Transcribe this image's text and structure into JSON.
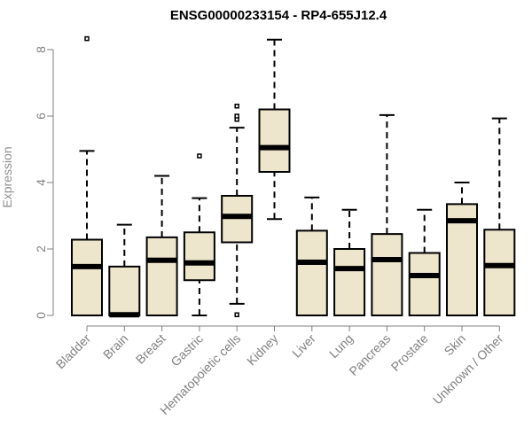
{
  "chart_data": {
    "type": "boxplot",
    "title": "ENSG00000233154 - RP4-655J12.4",
    "ylabel": "Expression",
    "xlabel": "",
    "ylim": [
      0,
      8.4
    ],
    "yticks": [
      0,
      2,
      4,
      6,
      8
    ],
    "colors": {
      "box_fill": "#ede5cc",
      "box_stroke": "#000000",
      "axis": "#808080"
    },
    "categories": [
      "Bladder",
      "Brain",
      "Breast",
      "Gastric",
      "Hematopoietic cells",
      "Kidney",
      "Liver",
      "Lung",
      "Pancreas",
      "Prostate",
      "Skin",
      "Unknown / Other"
    ],
    "boxes": [
      {
        "category": "Bladder",
        "min": 0,
        "q1": 0,
        "median": 1.47,
        "q3": 2.28,
        "max": 4.95,
        "outliers": [
          8.33
        ]
      },
      {
        "category": "Brain",
        "min": 0,
        "q1": 0,
        "median": 0.02,
        "q3": 1.47,
        "max": 2.73,
        "outliers": []
      },
      {
        "category": "Breast",
        "min": 0,
        "q1": 0,
        "median": 1.66,
        "q3": 2.35,
        "max": 4.2,
        "outliers": []
      },
      {
        "category": "Gastric",
        "min": 0,
        "q1": 1.06,
        "median": 1.58,
        "q3": 2.5,
        "max": 3.53,
        "outliers": [
          4.8
        ]
      },
      {
        "category": "Hematopoietic cells",
        "min": 0.35,
        "q1": 2.2,
        "median": 2.98,
        "q3": 3.6,
        "max": 5.65,
        "outliers": [
          0.02,
          5.9,
          6.0,
          6.3
        ]
      },
      {
        "category": "Kidney",
        "min": 2.9,
        "q1": 4.32,
        "median": 5.05,
        "q3": 6.2,
        "max": 8.3,
        "outliers": []
      },
      {
        "category": "Liver",
        "min": 0,
        "q1": 0,
        "median": 1.6,
        "q3": 2.55,
        "max": 3.55,
        "outliers": []
      },
      {
        "category": "Lung",
        "min": 0,
        "q1": 0,
        "median": 1.41,
        "q3": 2.0,
        "max": 3.18,
        "outliers": []
      },
      {
        "category": "Pancreas",
        "min": 0,
        "q1": 0,
        "median": 1.68,
        "q3": 2.45,
        "max": 6.03,
        "outliers": []
      },
      {
        "category": "Prostate",
        "min": 0,
        "q1": 0,
        "median": 1.2,
        "q3": 1.88,
        "max": 3.18,
        "outliers": []
      },
      {
        "category": "Skin",
        "min": 0,
        "q1": 0,
        "median": 2.85,
        "q3": 3.35,
        "max": 4.0,
        "outliers": []
      },
      {
        "category": "Unknown / Other",
        "min": 0,
        "q1": 0,
        "median": 1.5,
        "q3": 2.58,
        "max": 5.93,
        "outliers": []
      }
    ]
  }
}
